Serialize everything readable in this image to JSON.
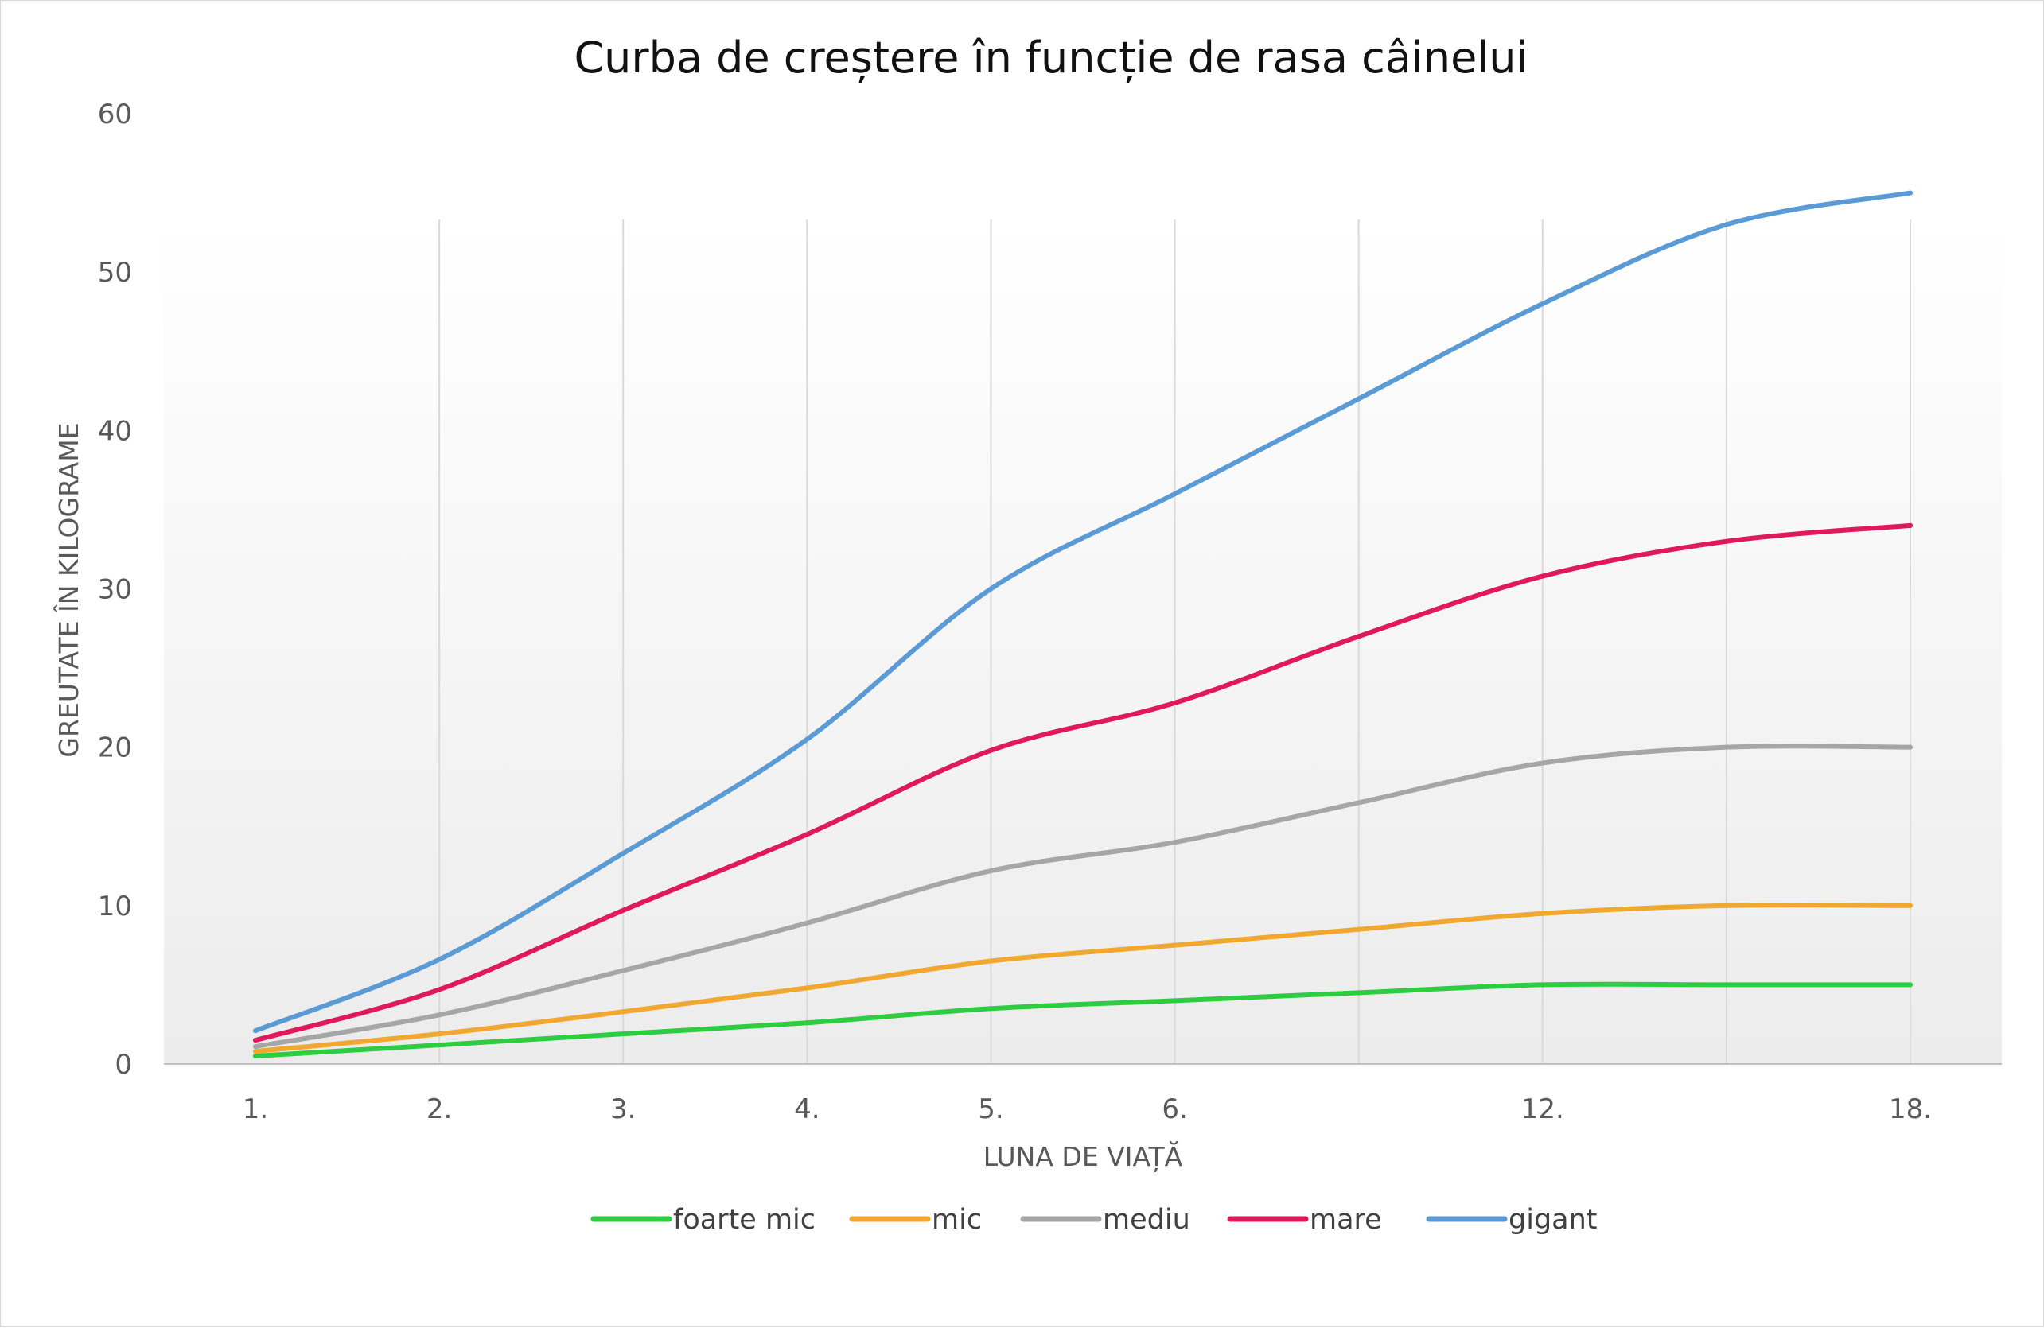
{
  "chart_data": {
    "type": "line",
    "title": "Curba de creștere în funcție de rasa câinelui",
    "xlabel": "LUNA DE VIAȚĂ",
    "ylabel": "GREUTATE ÎN KILOGRAME",
    "categories": [
      "1.",
      "2.",
      "3.",
      "4.",
      "5.",
      "6.",
      "",
      "12.",
      "",
      "18."
    ],
    "ylim": [
      0,
      60
    ],
    "yticks": [
      "0",
      "10",
      "20",
      "30",
      "40",
      "50",
      "60"
    ],
    "grid": "vertical",
    "legend": "bottom",
    "smooth": true,
    "series": [
      {
        "name": "foarte mic",
        "color": "#2ecc40",
        "values": [
          0.5,
          1.2,
          1.9,
          2.6,
          3.5,
          4.0,
          4.5,
          5.0,
          5.0,
          5.0
        ]
      },
      {
        "name": "mic",
        "color": "#f0a830",
        "values": [
          0.8,
          1.9,
          3.3,
          4.8,
          6.5,
          7.5,
          8.5,
          9.5,
          10.0,
          10.0
        ]
      },
      {
        "name": "mediu",
        "color": "#a6a6a6",
        "values": [
          1.1,
          3.1,
          5.9,
          8.9,
          12.2,
          14.0,
          16.5,
          19.0,
          20.0,
          20.0
        ]
      },
      {
        "name": "mare",
        "color": "#e0185c",
        "values": [
          1.5,
          4.7,
          9.7,
          14.5,
          19.8,
          22.8,
          27.0,
          30.8,
          33.0,
          34.0
        ]
      },
      {
        "name": "gigant",
        "color": "#5b9bd5",
        "values": [
          2.1,
          6.6,
          13.3,
          20.5,
          30.0,
          36.0,
          42.0,
          48.0,
          53.0,
          55.0
        ]
      }
    ]
  }
}
